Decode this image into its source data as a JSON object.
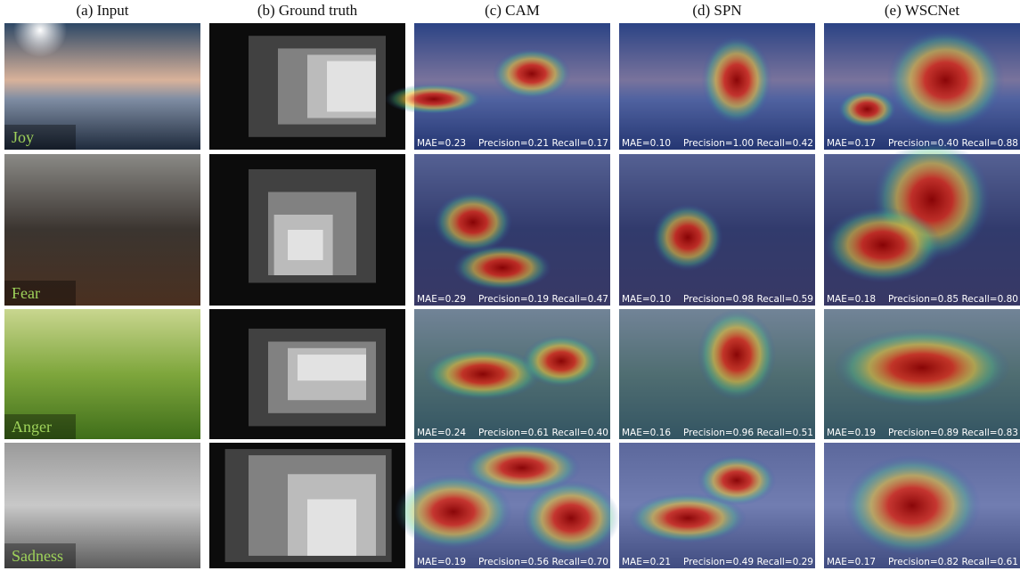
{
  "headers": [
    "(a) Input",
    "(b) Ground truth",
    "(c) CAM",
    "(d) SPN",
    "(e) WSCNet"
  ],
  "rows": [
    {
      "label": "Joy",
      "metrics": [
        [
          "MAE=0.23",
          "Precision=0.21",
          "Recall=0.17"
        ],
        [
          "MAE=0.10",
          "Precision=1.00",
          "Recall=0.42"
        ],
        [
          "MAE=0.17",
          "Precision=0.40",
          "Recall=0.88"
        ]
      ]
    },
    {
      "label": "Fear",
      "metrics": [
        [
          "MAE=0.29",
          "Precision=0.19",
          "Recall=0.47"
        ],
        [
          "MAE=0.10",
          "Precision=0.98",
          "Recall=0.59"
        ],
        [
          "MAE=0.18",
          "Precision=0.85",
          "Recall=0.80"
        ]
      ]
    },
    {
      "label": "Anger",
      "metrics": [
        [
          "MAE=0.24",
          "Precision=0.61",
          "Recall=0.40"
        ],
        [
          "MAE=0.16",
          "Precision=0.96",
          "Recall=0.51"
        ],
        [
          "MAE=0.19",
          "Precision=0.89",
          "Recall=0.83"
        ]
      ]
    },
    {
      "label": "Sadness",
      "metrics": [
        [
          "MAE=0.19",
          "Precision=0.56",
          "Recall=0.70"
        ],
        [
          "MAE=0.21",
          "Precision=0.49",
          "Recall=0.29"
        ],
        [
          "MAE=0.17",
          "Precision=0.82",
          "Recall=0.61"
        ]
      ]
    }
  ]
}
